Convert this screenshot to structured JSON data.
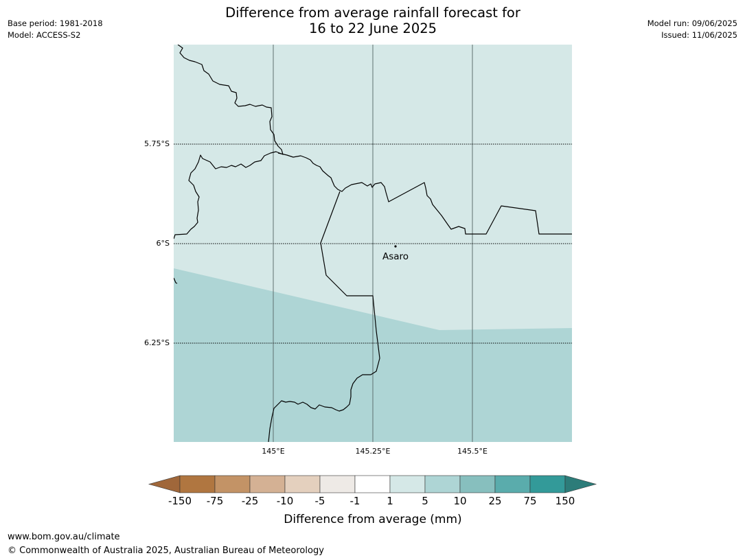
{
  "header": {
    "title_line1": "Difference from average rainfall forecast for",
    "title_line2": "16 to 22 June 2025",
    "base_period": "Base period: 1981-2018",
    "model": "Model: ACCESS-S2",
    "model_run": "Model run: 09/06/2025",
    "issued": "Issued: 11/06/2025"
  },
  "map": {
    "lat_labels": [
      "5.75°S",
      "6°S",
      "6.25°S"
    ],
    "lon_labels": [
      "145°E",
      "145.25°E",
      "145.5°E"
    ],
    "place_label": "Asaro",
    "region_colors": {
      "upper": "#d5e8e7",
      "lower": "#aed5d5"
    },
    "region_values": {
      "upper": "1 to 5 mm",
      "lower": "5 to 10 mm"
    }
  },
  "colorbar": {
    "label": "Difference from average (mm)",
    "ticks": [
      "-150",
      "-75",
      "-25",
      "-10",
      "-5",
      "-1",
      "1",
      "5",
      "10",
      "25",
      "75",
      "150"
    ],
    "colors": [
      "#a0673a",
      "#b07640",
      "#c39366",
      "#d4b194",
      "#e4d0be",
      "#eeeae6",
      "#ffffff",
      "#d5e8e7",
      "#aed5d5",
      "#87bfbe",
      "#5aacac",
      "#339a99",
      "#2c7c79"
    ]
  },
  "footer": {
    "url": "www.bom.gov.au/climate",
    "copyright": "© Commonwealth of Australia 2025, Australian Bureau of Meteorology"
  }
}
